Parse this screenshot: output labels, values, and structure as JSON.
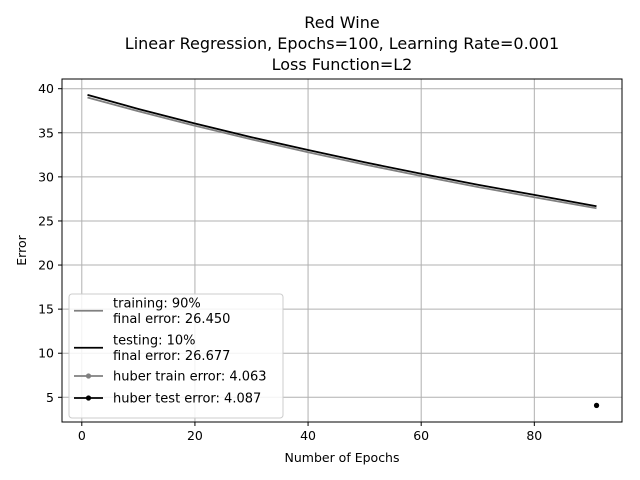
{
  "chart_data": {
    "type": "line",
    "title": [
      "Red Wine",
      "Linear Regression, Epochs=100, Learning Rate=0.001",
      "Loss Function=L2"
    ],
    "xlabel": "Number of Epochs",
    "ylabel": "Error",
    "xlim": [
      -3.5,
      95.5
    ],
    "ylim": [
      2.2,
      41.1
    ],
    "xticks": [
      0,
      20,
      40,
      60,
      80
    ],
    "yticks": [
      5,
      10,
      15,
      20,
      25,
      30,
      35,
      40
    ],
    "grid": true,
    "legend_position": "lower-left",
    "series": [
      {
        "name": [
          "training: 90%",
          "final error: 26.450"
        ],
        "color": "#808080",
        "marker": "none",
        "x": [
          1,
          10,
          20,
          30,
          40,
          50,
          60,
          70,
          80,
          91
        ],
        "y": [
          39.0,
          37.45,
          35.8,
          34.25,
          32.8,
          31.4,
          30.1,
          28.85,
          27.7,
          26.45
        ]
      },
      {
        "name": [
          "testing: 10%",
          "final error: 26.677"
        ],
        "color": "#000000",
        "marker": "none",
        "x": [
          1,
          10,
          20,
          30,
          40,
          50,
          60,
          70,
          80,
          91
        ],
        "y": [
          39.3,
          37.7,
          36.05,
          34.5,
          33.05,
          31.65,
          30.35,
          29.1,
          27.95,
          26.677
        ]
      },
      {
        "name": [
          "huber train error: 4.063"
        ],
        "color": "#808080",
        "marker": "dot",
        "x": [
          91
        ],
        "y": [
          4.063
        ]
      },
      {
        "name": [
          "huber test error: 4.087"
        ],
        "color": "#000000",
        "marker": "dot",
        "x": [
          91
        ],
        "y": [
          4.087
        ]
      }
    ]
  }
}
